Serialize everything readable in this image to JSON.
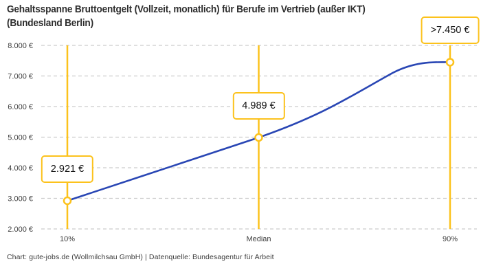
{
  "card": {
    "title_lines": [
      "Gehaltsspanne Bruttoentgelt (Vollzeit, monatlich) für Berufe im Vertrieb (außer IKT)",
      "(Bundesland Berlin)"
    ],
    "footer": "Chart: gute-jobs.de (Wollmilchsau GmbH) | Datenquelle: Bundesagentur für Arbeit"
  },
  "colors": {
    "accent": "#FCC21C",
    "line": "#2946B4",
    "grid": "#CCCCCC",
    "title_text": "#2D2D2D",
    "axis_text": "#3C3C3C",
    "label_text": "#111111",
    "background": "#FFFFFF"
  },
  "chart_data": {
    "type": "line",
    "title": "Gehaltsspanne Bruttoentgelt (Vollzeit, monatlich) für Berufe im Vertrieb (außer IKT) (Bundesland Berlin)",
    "categories": [
      "10%",
      "Median",
      "90%"
    ],
    "values": [
      2921,
      4989,
      7450
    ],
    "value_labels": [
      "2.921 €",
      "4.989 €",
      ">7.450 €"
    ],
    "ylim": [
      2000,
      8000
    ],
    "ytick_step": 1000,
    "ytick_labels": [
      "2.000 €",
      "3.000 €",
      "4.000 €",
      "5.000 €",
      "6.000 €",
      "7.000 €",
      "8.000 €"
    ],
    "xlabel": "",
    "ylabel": "",
    "grid": "horizontal-dashed",
    "legend": "none",
    "marker": "open-circle",
    "curve": "smoothed",
    "vertical_guides": true
  }
}
